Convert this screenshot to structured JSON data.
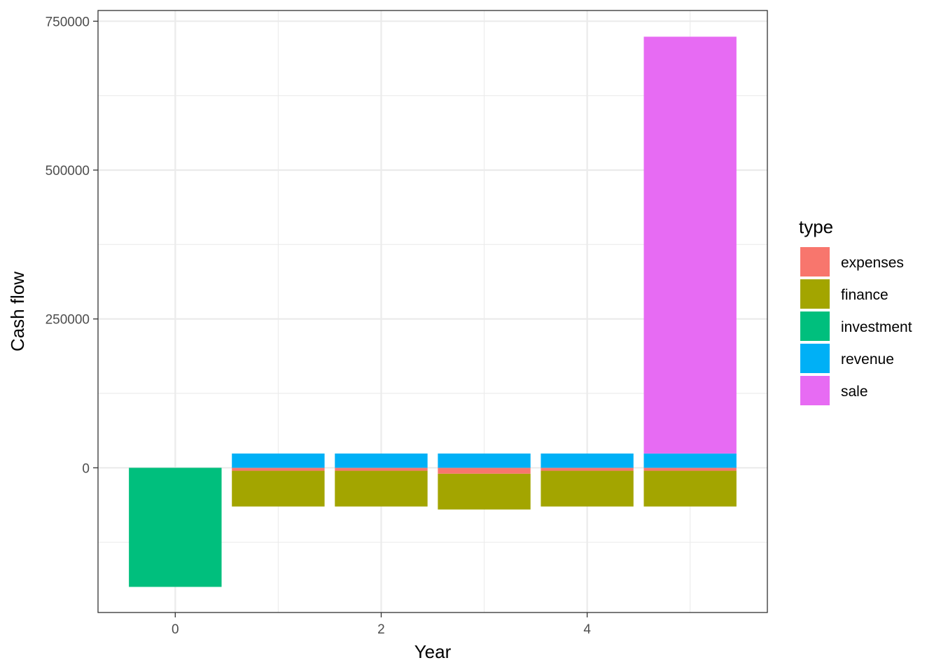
{
  "chart_data": {
    "type": "bar",
    "stacked": true,
    "xlabel": "Year",
    "ylabel": "Cash flow",
    "xlim": [
      -0.75,
      5.75
    ],
    "ylim": [
      -243000,
      768000
    ],
    "x_ticks": [
      0,
      2,
      4
    ],
    "y_ticks": [
      0,
      250000,
      500000,
      750000
    ],
    "x_tick_labels": [
      "0",
      "2",
      "4"
    ],
    "y_tick_labels": [
      "0",
      "250000",
      "500000",
      "750000"
    ],
    "grid": true,
    "legend": {
      "title": "type",
      "position": "right"
    },
    "x": [
      0,
      1,
      2,
      3,
      4,
      5
    ],
    "series": [
      {
        "name": "expenses",
        "color": "#F8766D",
        "values": [
          0,
          -5000,
          -5000,
          -10000,
          -5000,
          -5000
        ]
      },
      {
        "name": "finance",
        "color": "#A3A500",
        "values": [
          0,
          -60000,
          -60000,
          -60000,
          -60000,
          -60000
        ]
      },
      {
        "name": "investment",
        "color": "#00BF7D",
        "values": [
          -200000,
          0,
          0,
          0,
          0,
          0
        ]
      },
      {
        "name": "revenue",
        "color": "#00B0F6",
        "values": [
          0,
          24000,
          24000,
          24000,
          24000,
          24000
        ]
      },
      {
        "name": "sale",
        "color": "#E76BF3",
        "values": [
          0,
          0,
          0,
          0,
          0,
          700000
        ]
      }
    ]
  }
}
